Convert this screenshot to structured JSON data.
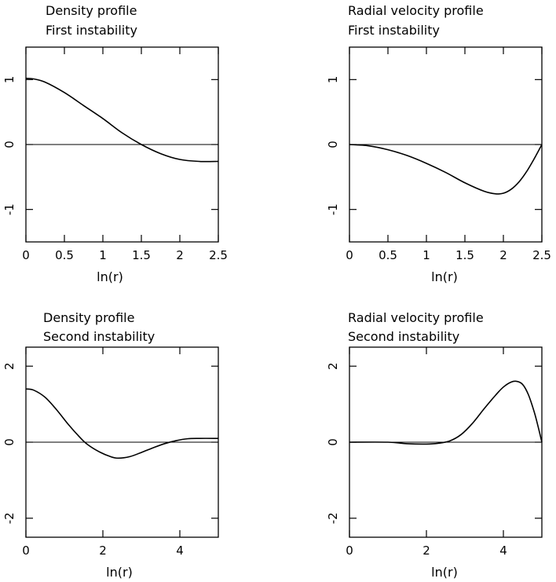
{
  "chart_data": [
    {
      "type": "line",
      "title": "Density profile",
      "subtitle": "First instability",
      "xlabel": "ln(r)",
      "ylabel": "",
      "xlim": [
        0,
        2.5
      ],
      "ylim": [
        -1.5,
        1.5
      ],
      "x_ticks": [
        0,
        0.5,
        1,
        1.5,
        2,
        2.5
      ],
      "x_tick_labels": [
        "0",
        "0.5",
        "1",
        "1.5",
        "2",
        "2.5"
      ],
      "y_ticks": [
        -1,
        0,
        1
      ],
      "y_tick_labels": [
        "-1",
        "0",
        "1"
      ],
      "zero_line": true,
      "series": [
        {
          "name": "density",
          "x": [
            0,
            0.1,
            0.25,
            0.5,
            0.75,
            1.0,
            1.25,
            1.5,
            1.75,
            2.0,
            2.25,
            2.5
          ],
          "y": [
            1.02,
            1.01,
            0.96,
            0.8,
            0.6,
            0.4,
            0.18,
            0.0,
            -0.14,
            -0.23,
            -0.26,
            -0.26
          ]
        }
      ]
    },
    {
      "type": "line",
      "title": "Radial velocity profile",
      "subtitle": "First instability",
      "xlabel": "ln(r)",
      "ylabel": "",
      "xlim": [
        0,
        2.5
      ],
      "ylim": [
        -1.5,
        1.5
      ],
      "x_ticks": [
        0,
        0.5,
        1,
        1.5,
        2,
        2.5
      ],
      "x_tick_labels": [
        "0",
        "0.5",
        "1",
        "1.5",
        "2",
        "2.5"
      ],
      "y_ticks": [
        -1,
        0,
        1
      ],
      "y_tick_labels": [
        "-1",
        "0",
        "1"
      ],
      "zero_line": true,
      "series": [
        {
          "name": "radial velocity",
          "x": [
            0,
            0.25,
            0.5,
            0.75,
            1.0,
            1.25,
            1.5,
            1.75,
            1.9,
            2.0,
            2.1,
            2.2,
            2.3,
            2.4,
            2.5
          ],
          "y": [
            0,
            -0.02,
            -0.08,
            -0.17,
            -0.29,
            -0.43,
            -0.59,
            -0.72,
            -0.76,
            -0.75,
            -0.69,
            -0.58,
            -0.42,
            -0.22,
            0
          ]
        }
      ]
    },
    {
      "type": "line",
      "title": "Density profile",
      "subtitle": "Second instability",
      "xlabel": "ln(r)",
      "ylabel": "",
      "xlim": [
        0,
        5
      ],
      "ylim": [
        -2.5,
        2.5
      ],
      "x_ticks": [
        0,
        2,
        4
      ],
      "x_tick_labels": [
        "0",
        "2",
        "4"
      ],
      "y_ticks": [
        -2,
        0,
        2
      ],
      "y_tick_labels": [
        "-2",
        "0",
        "2"
      ],
      "zero_line": true,
      "series": [
        {
          "name": "density",
          "x": [
            0,
            0.2,
            0.5,
            0.8,
            1.1,
            1.4,
            1.6,
            1.9,
            2.2,
            2.4,
            2.7,
            3.0,
            3.3,
            3.6,
            3.9,
            4.2,
            4.5,
            5.0
          ],
          "y": [
            1.4,
            1.37,
            1.18,
            0.85,
            0.47,
            0.13,
            -0.06,
            -0.25,
            -0.38,
            -0.42,
            -0.38,
            -0.27,
            -0.15,
            -0.04,
            0.04,
            0.09,
            0.1,
            0.1
          ]
        }
      ]
    },
    {
      "type": "line",
      "title": "Radial velocity profile",
      "subtitle": "Second instability",
      "xlabel": "ln(r)",
      "ylabel": "",
      "xlim": [
        0,
        5
      ],
      "ylim": [
        -2.5,
        2.5
      ],
      "x_ticks": [
        0,
        2,
        4
      ],
      "x_tick_labels": [
        "0",
        "2",
        "4"
      ],
      "y_ticks": [
        -2,
        0,
        2
      ],
      "y_tick_labels": [
        "-2",
        "0",
        "2"
      ],
      "zero_line": true,
      "series": [
        {
          "name": "radial velocity",
          "x": [
            0,
            1.0,
            1.5,
            2.0,
            2.3,
            2.6,
            2.9,
            3.2,
            3.5,
            3.8,
            4.0,
            4.2,
            4.35,
            4.5,
            4.65,
            4.8,
            4.9,
            5.0
          ],
          "y": [
            0,
            0,
            -0.04,
            -0.05,
            -0.03,
            0.03,
            0.2,
            0.5,
            0.88,
            1.24,
            1.45,
            1.58,
            1.6,
            1.52,
            1.25,
            0.8,
            0.42,
            0
          ]
        }
      ]
    }
  ]
}
